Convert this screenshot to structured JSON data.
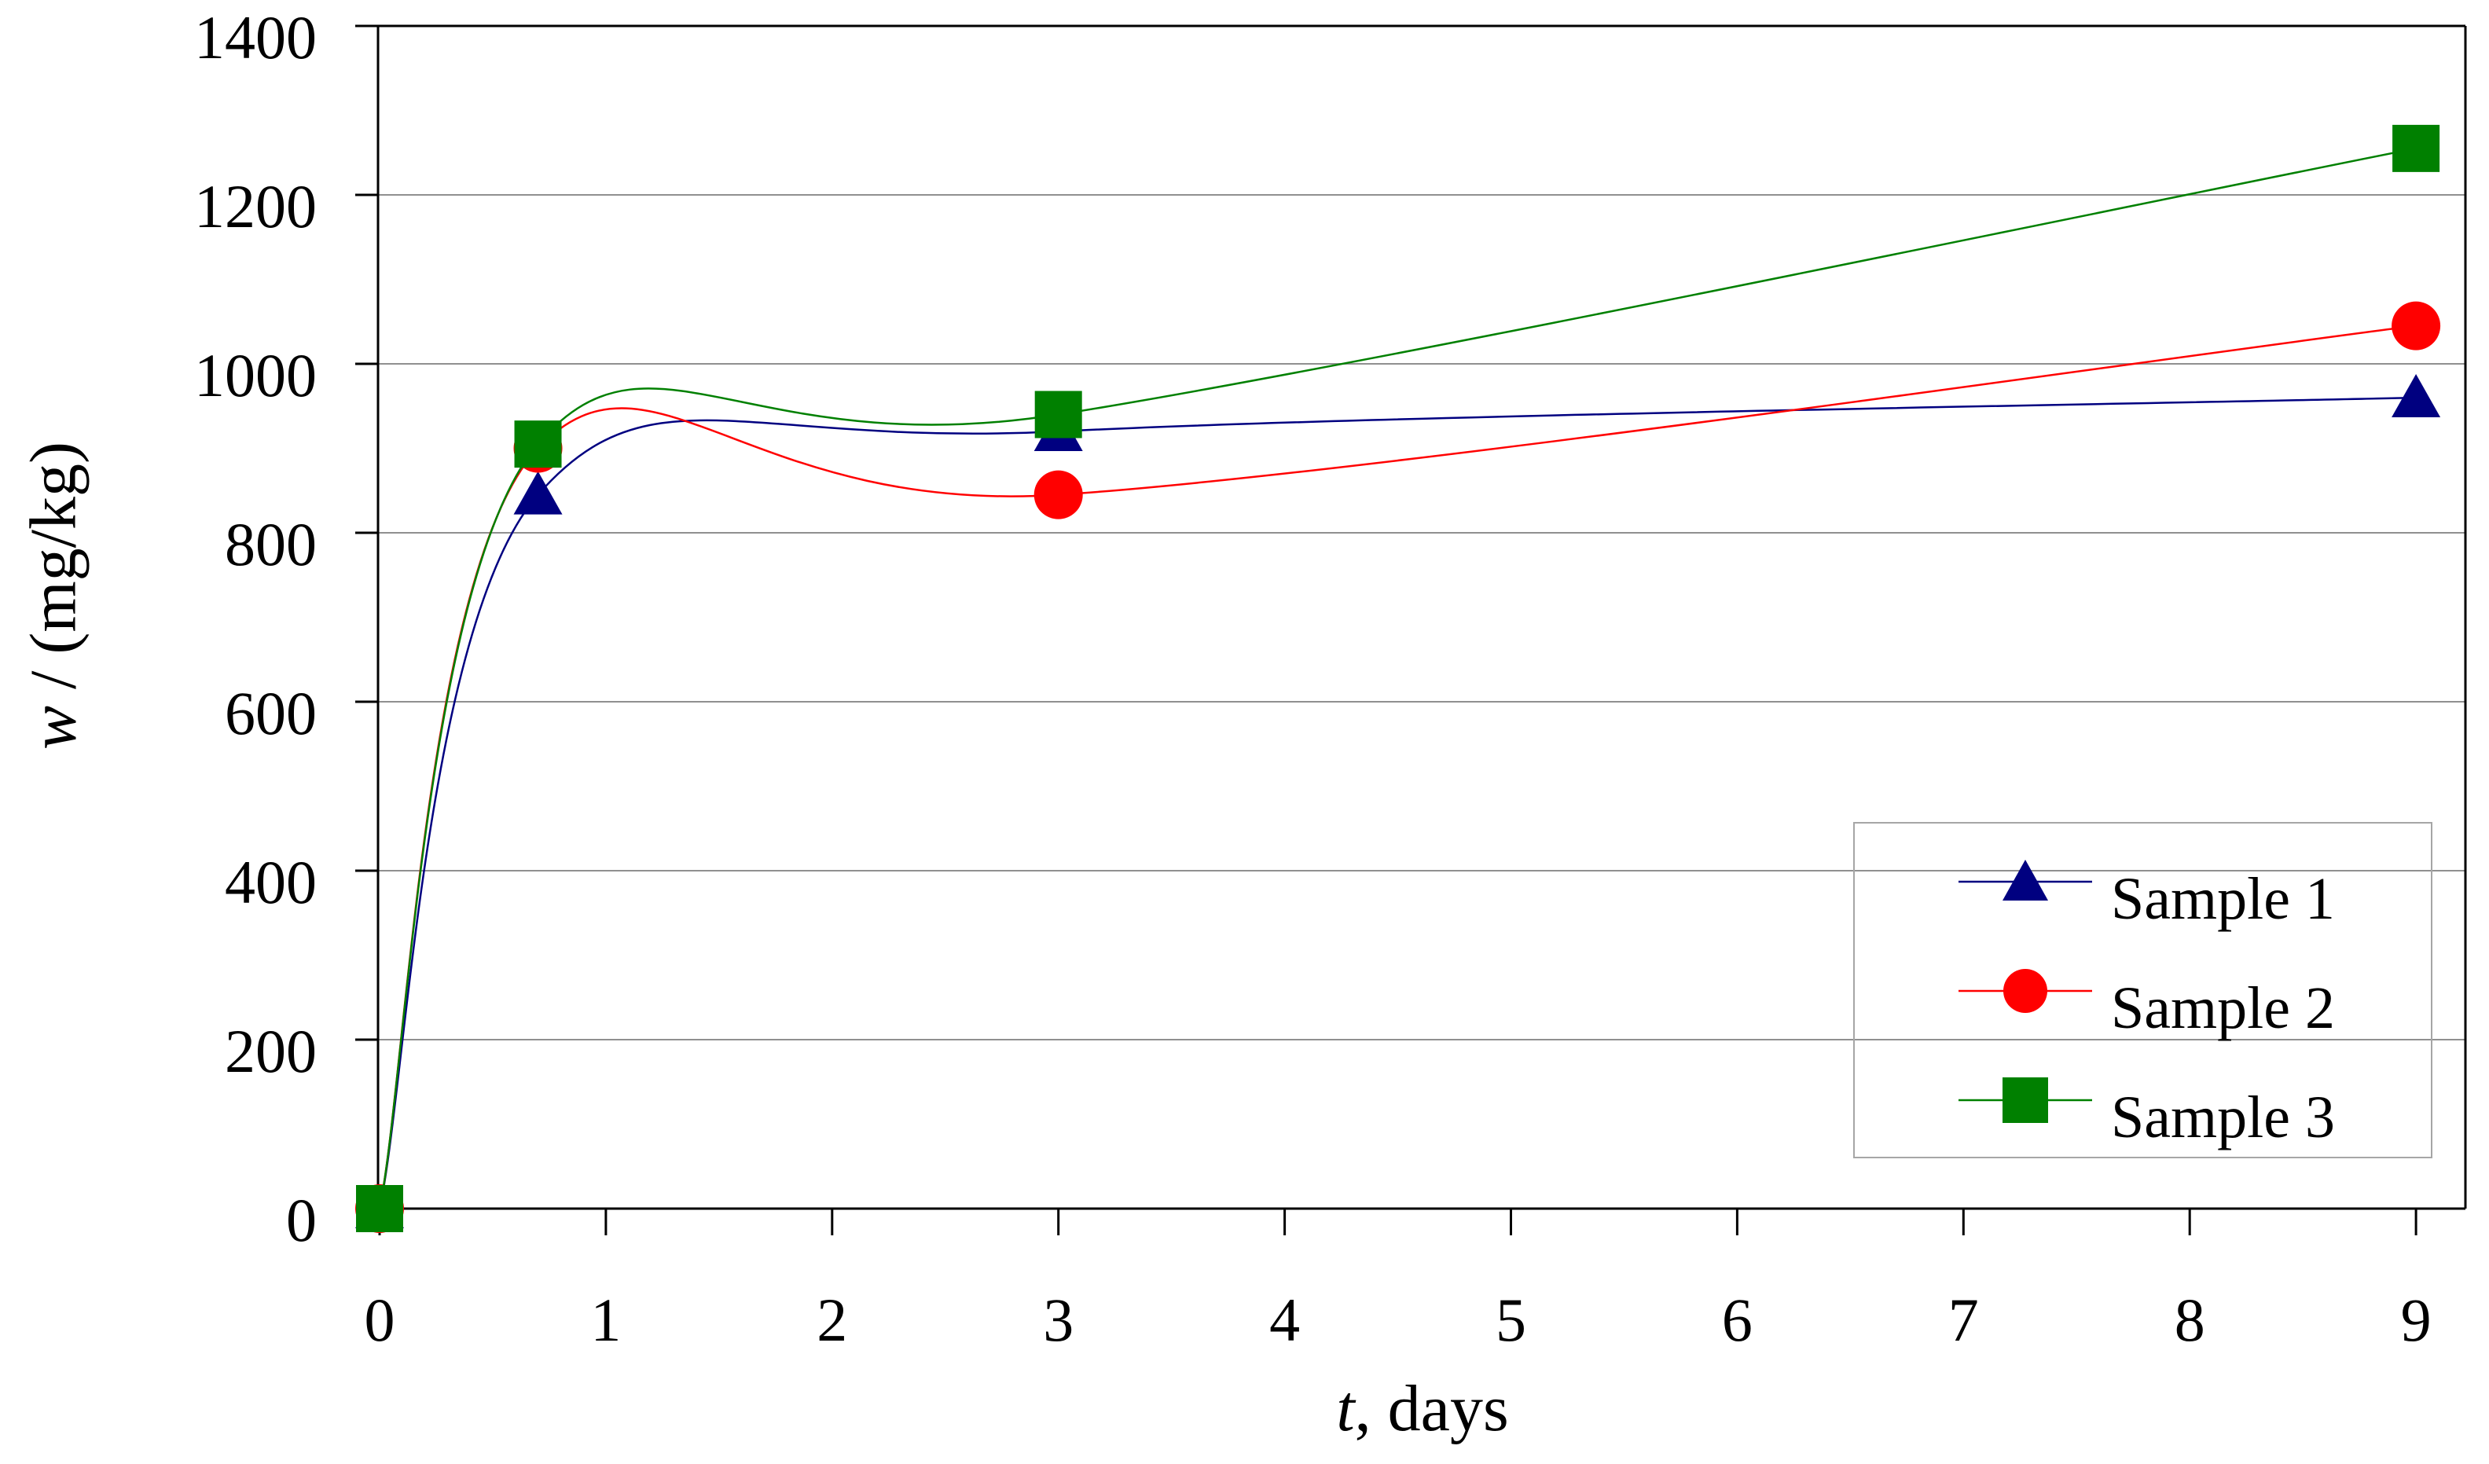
{
  "chart_data": {
    "type": "line",
    "title": "",
    "xlabel": "t, days",
    "ylabel": "w / (mg/kg)",
    "x": [
      0,
      0.7,
      3,
      9
    ],
    "series": [
      {
        "name": "Sample 1",
        "marker": "triangle",
        "color": "#000080",
        "values": [
          0,
          845,
          920,
          960
        ]
      },
      {
        "name": "Sample 2",
        "marker": "circle",
        "color": "#ff0000",
        "values": [
          0,
          900,
          845,
          1045
        ]
      },
      {
        "name": "Sample 3",
        "marker": "square",
        "color": "#008000",
        "values": [
          0,
          905,
          940,
          1255
        ]
      }
    ],
    "x_ticks": [
      0,
      1,
      2,
      3,
      4,
      5,
      6,
      7,
      8,
      9
    ],
    "y_ticks": [
      0,
      200,
      400,
      600,
      800,
      1000,
      1200,
      1400
    ],
    "xlim": [
      0,
      9.22
    ],
    "ylim": [
      0,
      1400
    ],
    "grid": "horizontal",
    "line_style": "smoothed",
    "legend_position": "inside-lower-right"
  },
  "axis": {
    "x_label_italic": "t",
    "x_label_rest": ", days",
    "y_label_italic": "w",
    "y_label_rest": " / (mg/kg)"
  },
  "colors": {
    "background": "#ffffff",
    "axis": "#000000",
    "gridline": "#909090",
    "legend_border": "#a6a6a6",
    "sample1": "#000080",
    "sample2": "#ff0000",
    "sample3": "#008000"
  }
}
